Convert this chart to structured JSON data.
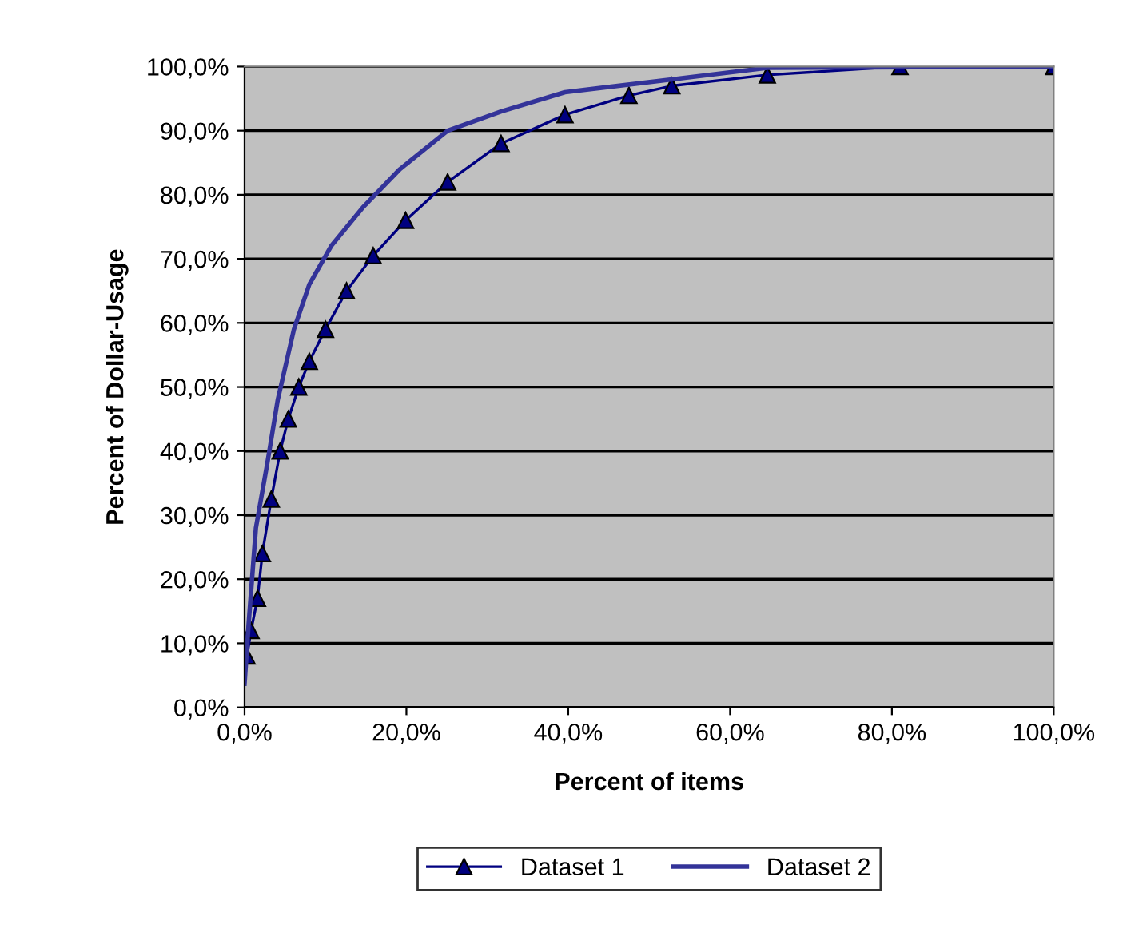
{
  "chart_data": {
    "type": "line",
    "xlabel": "Percent of items",
    "ylabel": "Percent of Dollar-Usage",
    "xlim": [
      0,
      100
    ],
    "ylim": [
      0,
      100
    ],
    "xticks": [
      {
        "value": 0,
        "label": "0,0%"
      },
      {
        "value": 20,
        "label": "20,0%"
      },
      {
        "value": 40,
        "label": "40,0%"
      },
      {
        "value": 60,
        "label": "60,0%"
      },
      {
        "value": 80,
        "label": "80,0%"
      },
      {
        "value": 100,
        "label": "100,0%"
      }
    ],
    "yticks": [
      {
        "value": 0,
        "label": "0,0%"
      },
      {
        "value": 10,
        "label": "10,0%"
      },
      {
        "value": 20,
        "label": "20,0%"
      },
      {
        "value": 30,
        "label": "30,0%"
      },
      {
        "value": 40,
        "label": "40,0%"
      },
      {
        "value": 50,
        "label": "50,0%"
      },
      {
        "value": 60,
        "label": "60,0%"
      },
      {
        "value": 70,
        "label": "70,0%"
      },
      {
        "value": 80,
        "label": "80,0%"
      },
      {
        "value": 90,
        "label": "90,0%"
      },
      {
        "value": 100,
        "label": "100,0%"
      }
    ],
    "grid": "y",
    "legend": "bottom",
    "line_style": "solid",
    "series": [
      {
        "name": "Dataset 1",
        "color": "#000080",
        "marker": "triangle",
        "x": [
          0.3,
          0.8,
          1.6,
          2.2,
          3.3,
          4.4,
          5.4,
          6.7,
          8.0,
          10,
          12.6,
          15.9,
          19.9,
          25.1,
          31.7,
          39.6,
          47.5,
          52.8,
          64.6,
          81,
          100
        ],
        "values": [
          8,
          12,
          17,
          24,
          32.5,
          40,
          45,
          50,
          54,
          59,
          65,
          70.5,
          76,
          82,
          88,
          92.5,
          95.5,
          97,
          98.7,
          100,
          100
        ]
      },
      {
        "name": "Dataset 2",
        "color": "#333399",
        "marker": "none",
        "x": [
          0,
          0.5,
          1.4,
          2.8,
          4.1,
          6.1,
          8.0,
          10.7,
          14.6,
          19.2,
          25.1,
          31.7,
          39.6,
          52.8,
          64.6,
          100
        ],
        "values": [
          3.7,
          13,
          28,
          38,
          48,
          59,
          66,
          72,
          78,
          84,
          90,
          93,
          96,
          98,
          99.8,
          100
        ]
      }
    ]
  }
}
